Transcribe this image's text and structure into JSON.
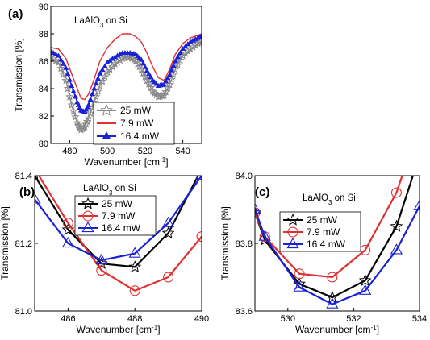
{
  "chart_data": [
    {
      "type": "line",
      "panel": "(a)",
      "annotation": "LaAlO",
      "annotation_sub": "3",
      "annotation_tail": " on Si",
      "xlabel": "Wavenumber [cm",
      "xlabel_sup": "-1",
      "xlabel_tail": "]",
      "ylabel": "Transmission [%]",
      "xlim": [
        470,
        550
      ],
      "ylim": [
        80,
        90
      ],
      "xticks": [
        480,
        500,
        520,
        540
      ],
      "yticks": [
        80,
        82,
        84,
        86,
        88,
        90
      ],
      "legend_position": "center",
      "series": [
        {
          "name": "25 mW",
          "color": "#888888",
          "marker": "star",
          "x": [
            470,
            474,
            478,
            481,
            484,
            486,
            488,
            490,
            493,
            496,
            500,
            504,
            508,
            512,
            515,
            518,
            521,
            524,
            527,
            530,
            533,
            536,
            540,
            544,
            548,
            550
          ],
          "y": [
            86.3,
            85.9,
            84.6,
            82.8,
            81.5,
            81.0,
            81.2,
            81.8,
            83.0,
            84.2,
            85.2,
            85.8,
            86.2,
            86.3,
            86.0,
            85.4,
            84.6,
            83.8,
            83.4,
            83.5,
            84.3,
            85.4,
            86.4,
            86.9,
            87.3,
            87.5
          ]
        },
        {
          "name": "7.9 mW",
          "color": "#e03030",
          "marker": "none",
          "x": [
            470,
            474,
            478,
            481,
            484,
            486,
            488,
            490,
            493,
            496,
            500,
            504,
            508,
            512,
            515,
            518,
            521,
            524,
            527,
            530,
            533,
            536,
            540,
            544,
            548,
            550
          ],
          "y": [
            87.0,
            86.9,
            86.2,
            85.1,
            84.0,
            83.3,
            83.2,
            83.6,
            84.7,
            86.0,
            87.0,
            87.6,
            88.0,
            88.0,
            87.8,
            87.4,
            86.6,
            85.6,
            84.8,
            84.6,
            85.4,
            86.5,
            87.3,
            87.7,
            87.9,
            88.0
          ]
        },
        {
          "name": "16.4 mW",
          "color": "#1a22d8",
          "marker": "triangle-filled",
          "x": [
            470,
            474,
            478,
            481,
            484,
            486,
            488,
            490,
            493,
            496,
            500,
            504,
            508,
            512,
            515,
            518,
            521,
            524,
            527,
            530,
            533,
            536,
            540,
            544,
            548,
            550
          ],
          "y": [
            86.7,
            86.4,
            85.5,
            84.2,
            83.0,
            82.4,
            82.3,
            82.8,
            84.0,
            85.1,
            85.9,
            86.3,
            86.6,
            86.6,
            86.5,
            86.1,
            85.3,
            84.6,
            84.2,
            84.3,
            85.0,
            86.0,
            86.9,
            87.4,
            87.7,
            87.8
          ]
        }
      ]
    },
    {
      "type": "line",
      "panel": "(b)",
      "annotation": "LaAlO",
      "annotation_sub": "3",
      "annotation_tail": " on Si",
      "xlabel": "Wavenumber [cm",
      "xlabel_sup": "-1",
      "xlabel_tail": "]",
      "ylabel": "Transmission [%]",
      "xlim": [
        485,
        490
      ],
      "ylim": [
        81.0,
        81.4
      ],
      "xticks": [
        486,
        488,
        490
      ],
      "yticks": [
        81.0,
        81.2,
        81.4
      ],
      "ytick_labels": [
        "81.0",
        "81.2",
        "81.4"
      ],
      "legend_position": "top-center",
      "series": [
        {
          "name": "25 mW",
          "color": "#000000",
          "marker": "star",
          "x": [
            485,
            486,
            487,
            488,
            489,
            490
          ],
          "y": [
            81.4,
            81.24,
            81.14,
            81.13,
            81.23,
            81.42
          ]
        },
        {
          "name": "7.9 mW",
          "color": "#e03030",
          "marker": "circle-open",
          "x": [
            485,
            486,
            487,
            488,
            489,
            490
          ],
          "y": [
            81.42,
            81.26,
            81.12,
            81.06,
            81.1,
            81.22
          ]
        },
        {
          "name": "16.4 mW",
          "color": "#1a22d8",
          "marker": "triangle-open",
          "x": [
            485,
            486,
            487,
            488,
            489,
            490
          ],
          "y": [
            81.33,
            81.2,
            81.15,
            81.17,
            81.26,
            81.4
          ]
        }
      ]
    },
    {
      "type": "line",
      "panel": "(c)",
      "annotation": "LaAlO",
      "annotation_sub": "3",
      "annotation_tail": " on Si",
      "xlabel": "Wavenumber [cm",
      "xlabel_sup": "-1",
      "xlabel_tail": "]",
      "ylabel": "Transmission [%]",
      "xlim": [
        529,
        534
      ],
      "ylim": [
        83.6,
        84.0
      ],
      "xticks": [
        530,
        532,
        534
      ],
      "yticks": [
        83.6,
        83.8,
        84.0
      ],
      "ytick_labels": [
        "83.6",
        "83.8",
        "84.0"
      ],
      "legend_position": "top-center",
      "series": [
        {
          "name": "25 mW",
          "color": "#000000",
          "marker": "star",
          "x": [
            529,
            529.3,
            530.35,
            531.35,
            532.35,
            533.3,
            534
          ],
          "y": [
            83.89,
            83.81,
            83.68,
            83.64,
            83.69,
            83.85,
            84.06
          ]
        },
        {
          "name": "7.9 mW",
          "color": "#e03030",
          "marker": "circle-open",
          "x": [
            529,
            529.3,
            530.35,
            531.35,
            532.35,
            533.3,
            534
          ],
          "y": [
            83.89,
            83.82,
            83.71,
            83.7,
            83.78,
            83.95,
            84.15
          ]
        },
        {
          "name": "16.4 mW",
          "color": "#1a22d8",
          "marker": "triangle-open",
          "x": [
            529,
            529.3,
            530.35,
            531.35,
            532.35,
            533.3,
            534
          ],
          "y": [
            83.9,
            83.82,
            83.67,
            83.62,
            83.66,
            83.78,
            83.91
          ]
        }
      ]
    }
  ]
}
